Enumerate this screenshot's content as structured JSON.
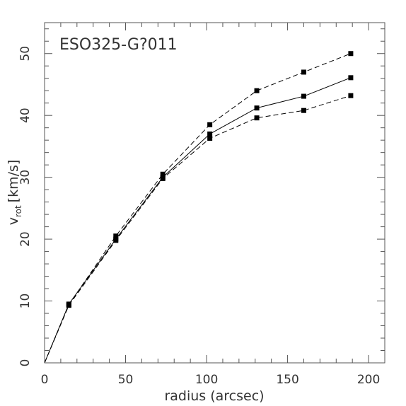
{
  "chart_data": {
    "type": "line",
    "title": "ESO325-G?011",
    "xlabel": "radius (arcsec)",
    "ylabel_main": "v",
    "ylabel_sub": "rot",
    "ylabel_units": "[km/s]",
    "xlim": [
      0,
      210
    ],
    "ylim": [
      0,
      55
    ],
    "xticks_major": [
      0,
      50,
      100,
      150,
      200
    ],
    "yticks_major": [
      0,
      10,
      20,
      30,
      40,
      50
    ],
    "x": [
      0,
      15,
      44,
      73,
      102,
      131,
      160,
      189
    ],
    "series": [
      {
        "style": "solid",
        "markers": true,
        "y": [
          0,
          9.5,
          20.0,
          30.0,
          37.0,
          41.2,
          43.1,
          46.1
        ]
      },
      {
        "style": "dashed",
        "markers": true,
        "y": [
          0,
          9.4,
          20.5,
          30.5,
          38.5,
          44.0,
          47.0,
          50.0
        ]
      },
      {
        "style": "dashed",
        "markers": true,
        "y": [
          0,
          9.3,
          19.8,
          29.8,
          36.3,
          39.6,
          40.8,
          43.2
        ]
      }
    ],
    "grid": false,
    "line_color": "#000000",
    "axis_color": "#555555"
  }
}
